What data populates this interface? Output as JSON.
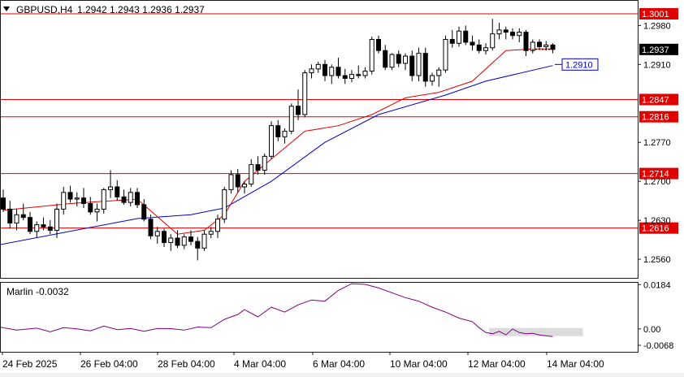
{
  "header": {
    "symbol_label": "GBPUSD,H4",
    "ohlc": "1.2942 1.2943 1.2936 1.2937",
    "arrow_icon": "triangle-down-icon"
  },
  "colors": {
    "background": "#ffffff",
    "frame": "#1a1a1a",
    "level_line": "#e00000",
    "level_label_bg": "#e00000",
    "ma_fast": "#e00000",
    "ma_slow": "#0000cc",
    "oscillator": "#800080",
    "box_fill": "#d3d3d3",
    "current_price_bg": "#000000",
    "ma_label_border": "#0000cc"
  },
  "price_axis": {
    "ticks": [
      "1.2980",
      "1.2910",
      "1.2770",
      "1.2700",
      "1.2630",
      "1.2560"
    ],
    "range": [
      1.2525,
      1.302
    ],
    "current_price": "1.2937",
    "ma_value": "1.2910"
  },
  "levels": [
    {
      "value": "1.3001"
    },
    {
      "value": "1.2847"
    },
    {
      "value": "1.2816"
    },
    {
      "value": "1.2714"
    },
    {
      "value": "1.2616"
    }
  ],
  "indicator": {
    "label": "Marlin -0.0032",
    "ticks": [
      "0.0184",
      "0.00",
      "-0.0068"
    ],
    "range": [
      -0.0095,
      0.0195
    ]
  },
  "time_axis": {
    "labels": [
      "24 Feb 2025",
      "26 Feb 04:00",
      "28 Feb 04:00",
      "4 Mar 04:00",
      "6 Mar 04:00",
      "10 Mar 04:00",
      "12 Mar 04:00",
      "14 Mar 04:00"
    ]
  },
  "chart_data": {
    "type": "candlestick",
    "symbol": "GBPUSD",
    "timeframe": "H4",
    "candles": [
      [
        1.267,
        1.2685,
        1.2645,
        1.265
      ],
      [
        1.265,
        1.2665,
        1.2615,
        1.2625
      ],
      [
        1.2625,
        1.265,
        1.2612,
        1.264
      ],
      [
        1.264,
        1.266,
        1.263,
        1.2635
      ],
      [
        1.2635,
        1.2645,
        1.2605,
        1.261
      ],
      [
        1.261,
        1.2628,
        1.2598,
        1.2622
      ],
      [
        1.2622,
        1.2635,
        1.2612,
        1.2618
      ],
      [
        1.2618,
        1.263,
        1.2605,
        1.2612
      ],
      [
        1.2612,
        1.266,
        1.2598,
        1.265
      ],
      [
        1.265,
        1.269,
        1.264,
        1.268
      ],
      [
        1.268,
        1.2692,
        1.2662,
        1.2668
      ],
      [
        1.2668,
        1.268,
        1.2655,
        1.267
      ],
      [
        1.267,
        1.2688,
        1.2652,
        1.266
      ],
      [
        1.266,
        1.2672,
        1.264,
        1.2645
      ],
      [
        1.2645,
        1.266,
        1.2628,
        1.265
      ],
      [
        1.265,
        1.2688,
        1.2642,
        1.2685
      ],
      [
        1.2685,
        1.272,
        1.267,
        1.269
      ],
      [
        1.269,
        1.2702,
        1.2665,
        1.2672
      ],
      [
        1.2672,
        1.2685,
        1.2658,
        1.2662
      ],
      [
        1.2662,
        1.2688,
        1.2655,
        1.268
      ],
      [
        1.268,
        1.2688,
        1.2652,
        1.2658
      ],
      [
        1.2658,
        1.2668,
        1.2628,
        1.2632
      ],
      [
        1.2632,
        1.264,
        1.2596,
        1.2602
      ],
      [
        1.2602,
        1.2618,
        1.2588,
        1.261
      ],
      [
        1.261,
        1.2615,
        1.2582,
        1.259
      ],
      [
        1.259,
        1.2605,
        1.2575,
        1.2598
      ],
      [
        1.2598,
        1.2612,
        1.258,
        1.2585
      ],
      [
        1.2585,
        1.2605,
        1.2578,
        1.26
      ],
      [
        1.26,
        1.2612,
        1.2585,
        1.2592
      ],
      [
        1.2592,
        1.26,
        1.2558,
        1.258
      ],
      [
        1.258,
        1.2612,
        1.2575,
        1.2605
      ],
      [
        1.2605,
        1.2618,
        1.2598,
        1.261
      ],
      [
        1.261,
        1.264,
        1.2598,
        1.2632
      ],
      [
        1.2632,
        1.269,
        1.2625,
        1.2685
      ],
      [
        1.2685,
        1.272,
        1.2678,
        1.2712
      ],
      [
        1.2712,
        1.2722,
        1.268,
        1.269
      ],
      [
        1.269,
        1.27,
        1.2678,
        1.2695
      ],
      [
        1.2695,
        1.274,
        1.269,
        1.273
      ],
      [
        1.273,
        1.2745,
        1.2712,
        1.272
      ],
      [
        1.272,
        1.275,
        1.2712,
        1.2745
      ],
      [
        1.2745,
        1.2808,
        1.274,
        1.28
      ],
      [
        1.28,
        1.281,
        1.2772,
        1.278
      ],
      [
        1.278,
        1.2795,
        1.2768,
        1.279
      ],
      [
        1.279,
        1.284,
        1.2785,
        1.2835
      ],
      [
        1.2835,
        1.2865,
        1.281,
        1.282
      ],
      [
        1.282,
        1.29,
        1.2815,
        1.2895
      ],
      [
        1.2895,
        1.291,
        1.2885,
        1.2902
      ],
      [
        1.2902,
        1.2915,
        1.2895,
        1.291
      ],
      [
        1.291,
        1.2918,
        1.288,
        1.289
      ],
      [
        1.289,
        1.291,
        1.2875,
        1.2905
      ],
      [
        1.2905,
        1.2922,
        1.2885,
        1.289
      ],
      [
        1.289,
        1.2902,
        1.2875,
        1.2885
      ],
      [
        1.2885,
        1.29,
        1.2878,
        1.2892
      ],
      [
        1.2892,
        1.2908,
        1.2885,
        1.289
      ],
      [
        1.289,
        1.2905,
        1.2885,
        1.2898
      ],
      [
        1.2898,
        1.296,
        1.2892,
        1.2955
      ],
      [
        1.2955,
        1.2962,
        1.293,
        1.2935
      ],
      [
        1.2935,
        1.2945,
        1.29,
        1.2905
      ],
      [
        1.2905,
        1.293,
        1.29,
        1.2928
      ],
      [
        1.2928,
        1.2935,
        1.2905,
        1.2912
      ],
      [
        1.2912,
        1.293,
        1.29,
        1.2925
      ],
      [
        1.2925,
        1.2935,
        1.288,
        1.289
      ],
      [
        1.289,
        1.294,
        1.288,
        1.293
      ],
      [
        1.293,
        1.294,
        1.287,
        1.288
      ],
      [
        1.288,
        1.2895,
        1.2872,
        1.289
      ],
      [
        1.289,
        1.2905,
        1.287,
        1.29
      ],
      [
        1.29,
        1.2962,
        1.2895,
        1.2955
      ],
      [
        1.2955,
        1.2972,
        1.294,
        1.2948
      ],
      [
        1.2948,
        1.2978,
        1.2942,
        1.297
      ],
      [
        1.297,
        1.298,
        1.2945,
        1.295
      ],
      [
        1.295,
        1.2962,
        1.2935,
        1.2945
      ],
      [
        1.2945,
        1.2955,
        1.293,
        1.2935
      ],
      [
        1.2935,
        1.2948,
        1.2928,
        1.294
      ],
      [
        1.294,
        1.2992,
        1.2935,
        1.2965
      ],
      [
        1.2965,
        1.2985,
        1.2955,
        1.2972
      ],
      [
        1.2972,
        1.2978,
        1.2955,
        1.2968
      ],
      [
        1.2968,
        1.2975,
        1.2955,
        1.2962
      ],
      [
        1.2962,
        1.2975,
        1.295,
        1.2968
      ],
      [
        1.2968,
        1.2972,
        1.2925,
        1.2935
      ],
      [
        1.2935,
        1.2955,
        1.293,
        1.295
      ],
      [
        1.295,
        1.2955,
        1.2938,
        1.2942
      ],
      [
        1.2942,
        1.2952,
        1.2935,
        1.2945
      ],
      [
        1.2945,
        1.2948,
        1.293,
        1.2937
      ]
    ],
    "ma_fast": [
      [
        0,
        1.2648
      ],
      [
        10,
        1.266
      ],
      [
        20,
        1.2668
      ],
      [
        26,
        1.2605
      ],
      [
        30,
        1.2612
      ],
      [
        33,
        1.264
      ],
      [
        36,
        1.27
      ],
      [
        41,
        1.275
      ],
      [
        45,
        1.279
      ],
      [
        50,
        1.28
      ],
      [
        55,
        1.282
      ],
      [
        60,
        1.285
      ],
      [
        65,
        1.286
      ],
      [
        70,
        1.288
      ],
      [
        75,
        1.2935
      ],
      [
        79,
        1.2938
      ],
      [
        82,
        1.2938
      ]
    ],
    "ma_slow": [
      [
        -1,
        1.2585
      ],
      [
        20,
        1.2633
      ],
      [
        28,
        1.264
      ],
      [
        33,
        1.2652
      ],
      [
        40,
        1.27
      ],
      [
        48,
        1.277
      ],
      [
        56,
        1.282
      ],
      [
        66,
        1.2855
      ],
      [
        72,
        1.288
      ],
      [
        82,
        1.2908
      ]
    ],
    "oscillator": [
      [
        -1,
        0.001
      ],
      [
        2,
        -0.0005
      ],
      [
        5,
        0.0003
      ],
      [
        7,
        -0.0012
      ],
      [
        9,
        0.0005
      ],
      [
        11,
        0.0
      ],
      [
        13,
        -0.0008
      ],
      [
        15,
        0.0012
      ],
      [
        17,
        -0.0003
      ],
      [
        19,
        0.0002
      ],
      [
        21,
        -0.001
      ],
      [
        23,
        0.0002
      ],
      [
        25,
        0.0001
      ],
      [
        27,
        -0.0005
      ],
      [
        29,
        0.0008
      ],
      [
        31,
        0.0005
      ],
      [
        33,
        0.004
      ],
      [
        35,
        0.006
      ],
      [
        36,
        0.008
      ],
      [
        38,
        0.005
      ],
      [
        40,
        0.009
      ],
      [
        42,
        0.007
      ],
      [
        44,
        0.01
      ],
      [
        46,
        0.012
      ],
      [
        48,
        0.0115
      ],
      [
        50,
        0.016
      ],
      [
        52,
        0.0188
      ],
      [
        54,
        0.0185
      ],
      [
        56,
        0.017
      ],
      [
        58,
        0.015
      ],
      [
        60,
        0.013
      ],
      [
        62,
        0.0115
      ],
      [
        64,
        0.009
      ],
      [
        66,
        0.007
      ],
      [
        68,
        0.0045
      ],
      [
        70,
        0.003
      ],
      [
        71,
        0.0005
      ],
      [
        72,
        -0.0015
      ],
      [
        73,
        -0.002
      ],
      [
        74,
        -0.001
      ],
      [
        75,
        -0.0025
      ],
      [
        76,
        0.0
      ],
      [
        77,
        -0.0015
      ],
      [
        78,
        -0.002
      ],
      [
        79,
        -0.0018
      ],
      [
        80,
        -0.0025
      ],
      [
        82,
        -0.0032
      ]
    ],
    "oscillator_box": [
      72.5,
      86.5,
      -0.003,
      0.0004
    ],
    "horizontal_levels": [
      1.3001,
      1.2847,
      1.2816,
      1.2714,
      1.2616
    ],
    "ylim": [
      1.2525,
      1.302
    ]
  }
}
